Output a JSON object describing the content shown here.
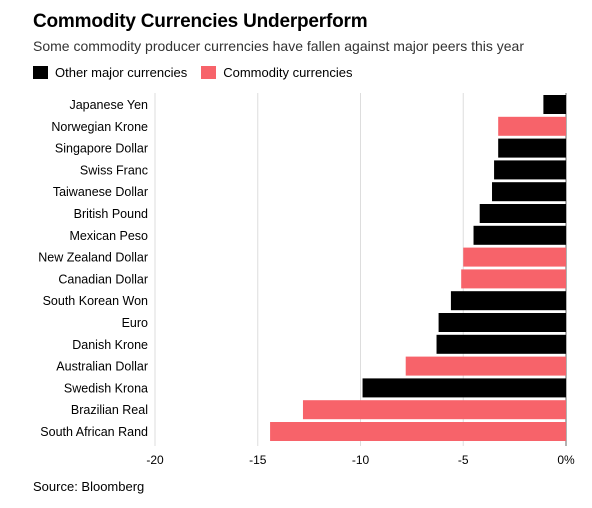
{
  "title": "Commodity Currencies Underperform",
  "subtitle": "Some commodity producer currencies have fallen against major peers this year",
  "legend": [
    {
      "label": "Other major currencies",
      "color": "#000000"
    },
    {
      "label": "Commodity currencies",
      "color": "#f7636a"
    }
  ],
  "source": "Source: Bloomberg",
  "chart_data": {
    "type": "bar",
    "orientation": "horizontal",
    "xlim": [
      -20,
      0
    ],
    "xticks": [
      -20,
      -15,
      -10,
      -5,
      0
    ],
    "xtick_labels": [
      "-20",
      "-15",
      "-10",
      "-5",
      "0%"
    ],
    "grid": true,
    "categories": [
      "Japanese Yen",
      "Norwegian Krone",
      "Singapore Dollar",
      "Swiss Franc",
      "Taiwanese Dollar",
      "British Pound",
      "Mexican Peso",
      "New Zealand Dollar",
      "Canadian Dollar",
      "South Korean Won",
      "Euro",
      "Danish Krone",
      "Australian Dollar",
      "Swedish Krona",
      "Brazilian Real",
      "South African Rand"
    ],
    "values": [
      -1.1,
      -3.3,
      -3.3,
      -3.5,
      -3.6,
      -4.2,
      -4.5,
      -5.0,
      -5.1,
      -5.6,
      -6.2,
      -6.3,
      -7.8,
      -9.9,
      -12.8,
      -14.4
    ],
    "groups": [
      "other",
      "commodity",
      "other",
      "other",
      "other",
      "other",
      "other",
      "commodity",
      "commodity",
      "other",
      "other",
      "other",
      "commodity",
      "other",
      "commodity",
      "commodity"
    ],
    "group_colors": {
      "other": "#000000",
      "commodity": "#f7636a"
    }
  }
}
